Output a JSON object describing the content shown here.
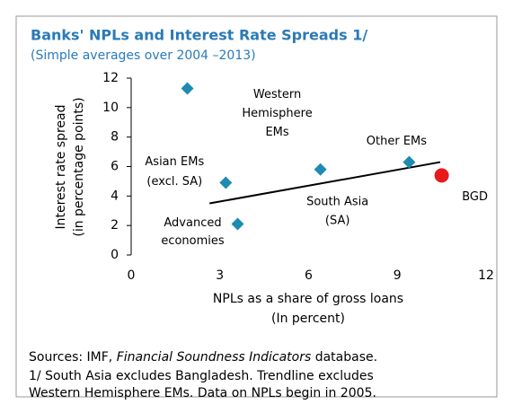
{
  "chart_data": {
    "type": "scatter",
    "title": "Banks' NPLs and Interest Rate Spreads 1/",
    "subtitle": "(Simple averages over 2004 –2013)",
    "y_label": [
      "Interest rate spread",
      "(in percentage points)"
    ],
    "x_label": [
      "NPLs as a share of gross loans",
      "(In percent)"
    ],
    "xlim": [
      0,
      12
    ],
    "xticks": [
      0,
      3,
      6,
      9,
      12
    ],
    "ylim": [
      0,
      12
    ],
    "yticks": [
      0,
      2,
      4,
      6,
      8,
      10,
      12
    ],
    "points": [
      {
        "label": [
          "Western",
          "Hemisphere",
          "EMs"
        ],
        "x": 1.9,
        "y": 11.3,
        "color": "#1f8bb0",
        "marker": "diamond"
      },
      {
        "label": [
          "Asian EMs",
          "(excl. SA)"
        ],
        "x": 3.2,
        "y": 4.9,
        "color": "#1f8bb0",
        "marker": "diamond"
      },
      {
        "label": [
          "Advanced",
          "economies"
        ],
        "x": 3.6,
        "y": 2.1,
        "color": "#1f8bb0",
        "marker": "diamond"
      },
      {
        "label": [
          "South Asia",
          "(SA)"
        ],
        "x": 6.4,
        "y": 5.8,
        "color": "#1f8bb0",
        "marker": "diamond"
      },
      {
        "label": [
          "Other EMs"
        ],
        "x": 9.4,
        "y": 6.3,
        "color": "#1f8bb0",
        "marker": "diamond"
      },
      {
        "label": [
          "BGD"
        ],
        "x": 10.5,
        "y": 5.4,
        "color": "#e8191a",
        "marker": "circle"
      }
    ],
    "trendline": {
      "x": [
        2.65,
        10.45
      ],
      "y": [
        3.5,
        6.3
      ],
      "color": "#000000"
    },
    "source": [
      "Sources: IMF, ",
      "Financial Soundness Indicators",
      " database."
    ],
    "notes": [
      "1/ South Asia excludes Bangladesh. Trendline excludes",
      "Western Hemisphere EMs. Data on NPLs begin in 2005."
    ]
  }
}
